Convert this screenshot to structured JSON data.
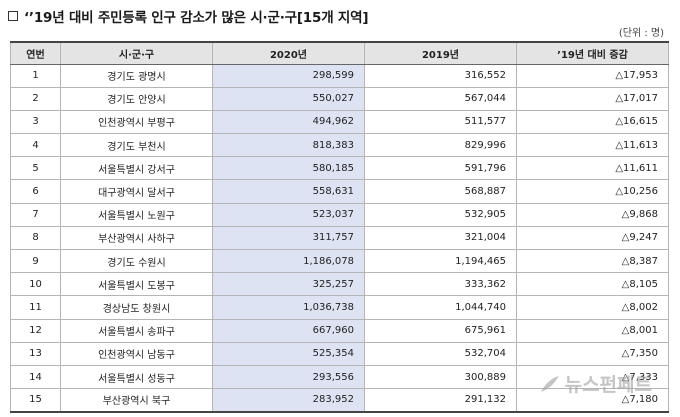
{
  "title": "‘’19년 대비 주민등록 인구 감소가 많은 시·군·구[15개 지역]",
  "unit": "(단위 : 명)",
  "headers": [
    "연번",
    "시·군·구",
    "2020년",
    "2019년",
    "’19년 대비 증감"
  ],
  "rows": [
    {
      "no": "1",
      "region": "경기도 광명시",
      "y2020": "298,599",
      "y2019": "316,552",
      "change": "△17,953"
    },
    {
      "no": "2",
      "region": "경기도 안양시",
      "y2020": "550,027",
      "y2019": "567,044",
      "change": "△17,017"
    },
    {
      "no": "3",
      "region": "인천광역시 부평구",
      "y2020": "494,962",
      "y2019": "511,577",
      "change": "△16,615"
    },
    {
      "no": "4",
      "region": "경기도 부천시",
      "y2020": "818,383",
      "y2019": "829,996",
      "change": "△11,613"
    },
    {
      "no": "5",
      "region": "서울특별시 강서구",
      "y2020": "580,185",
      "y2019": "591,796",
      "change": "△11,611"
    },
    {
      "no": "6",
      "region": "대구광역시 달서구",
      "y2020": "558,631",
      "y2019": "568,887",
      "change": "△10,256"
    },
    {
      "no": "7",
      "region": "서울특별시 노원구",
      "y2020": "523,037",
      "y2019": "532,905",
      "change": "△9,868"
    },
    {
      "no": "8",
      "region": "부산광역시 사하구",
      "y2020": "311,757",
      "y2019": "321,004",
      "change": "△9,247"
    },
    {
      "no": "9",
      "region": "경기도 수원시",
      "y2020": "1,186,078",
      "y2019": "1,194,465",
      "change": "△8,387"
    },
    {
      "no": "10",
      "region": "서울특별시 도봉구",
      "y2020": "325,257",
      "y2019": "333,362",
      "change": "△8,105"
    },
    {
      "no": "11",
      "region": "경상남도 창원시",
      "y2020": "1,036,738",
      "y2019": "1,044,740",
      "change": "△8,002"
    },
    {
      "no": "12",
      "region": "서울특별시 송파구",
      "y2020": "667,960",
      "y2019": "675,961",
      "change": "△8,001"
    },
    {
      "no": "13",
      "region": "인천광역시 남동구",
      "y2020": "525,354",
      "y2019": "532,704",
      "change": "△7,350"
    },
    {
      "no": "14",
      "region": "서울특별시 성동구",
      "y2020": "293,556",
      "y2019": "300,889",
      "change": "△7,333"
    },
    {
      "no": "15",
      "region": "부산광역시 북구",
      "y2020": "283,952",
      "y2019": "291,132",
      "change": "△7,180"
    }
  ],
  "watermark": "뉴스펀페트",
  "colors": {
    "highlight_column": "#dde3f2",
    "header_bg": "#e4e4e4"
  }
}
